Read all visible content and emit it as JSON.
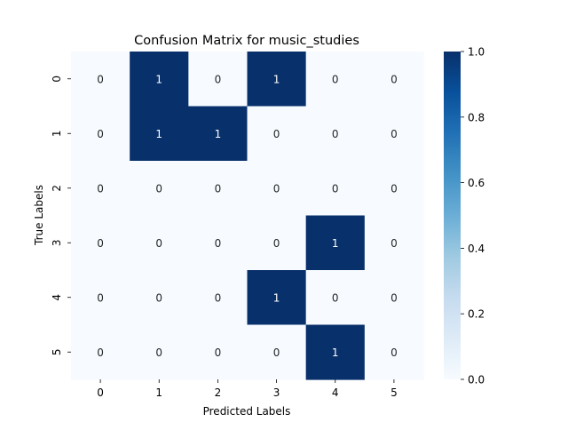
{
  "chart_data": {
    "type": "heatmap",
    "title": "Confusion Matrix for music_studies",
    "xlabel": "Predicted Labels",
    "ylabel": "True Labels",
    "x_categories": [
      "0",
      "1",
      "2",
      "3",
      "4",
      "5"
    ],
    "y_categories": [
      "0",
      "1",
      "2",
      "3",
      "4",
      "5"
    ],
    "values": [
      [
        0,
        1,
        0,
        1,
        0,
        0
      ],
      [
        0,
        1,
        1,
        0,
        0,
        0
      ],
      [
        0,
        0,
        0,
        0,
        0,
        0
      ],
      [
        0,
        0,
        0,
        0,
        1,
        0
      ],
      [
        0,
        0,
        0,
        1,
        0,
        0
      ],
      [
        0,
        0,
        0,
        0,
        1,
        0
      ]
    ],
    "colorbar": {
      "range": [
        0.0,
        1.0
      ],
      "ticks": [
        "0.0",
        "0.2",
        "0.4",
        "0.6",
        "0.8",
        "1.0"
      ],
      "colormap": "Blues",
      "low_color": "#f7fbff",
      "high_color": "#08306b"
    },
    "annotation_colors": {
      "on_low": "#262626",
      "on_high": "#ffffff"
    },
    "grid": false
  }
}
